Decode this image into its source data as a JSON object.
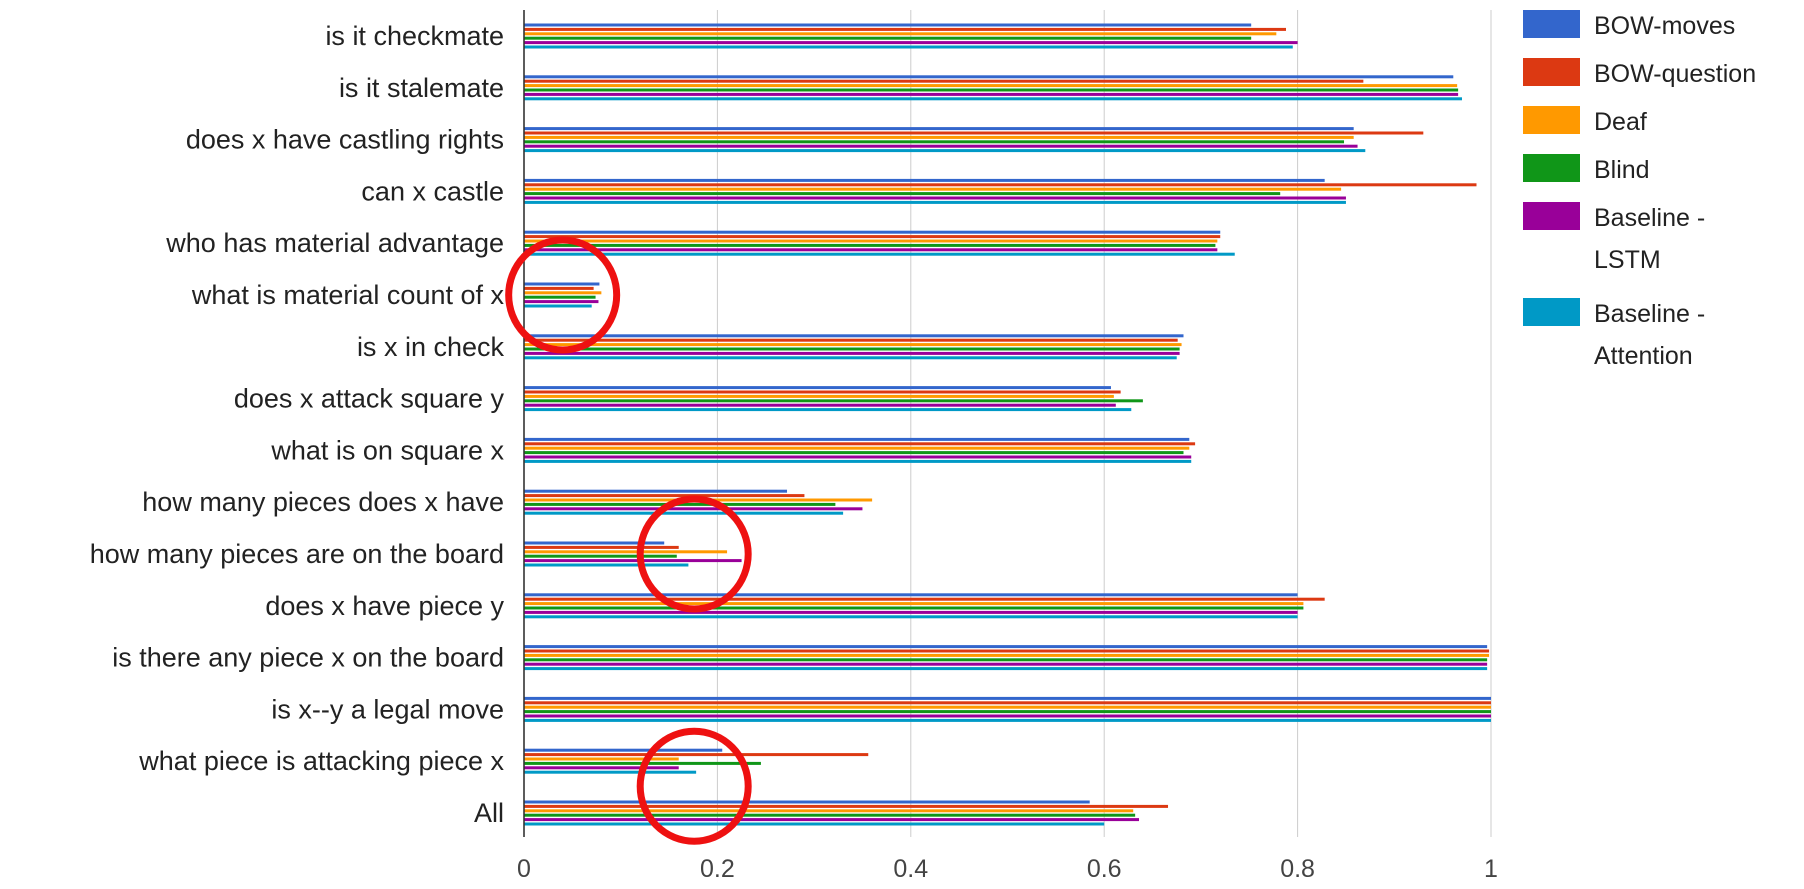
{
  "chart_data": {
    "type": "bar",
    "orientation": "horizontal",
    "title": "",
    "xlabel": "",
    "ylabel": "",
    "xlim": [
      0,
      1
    ],
    "x_ticks": [
      "0",
      "0.2",
      "0.4",
      "0.6",
      "0.8",
      "1"
    ],
    "grid": true,
    "legend_position": "right",
    "categories": [
      "is it checkmate",
      "is it stalemate",
      "does x have castling rights",
      "can x castle",
      "who has material advantage",
      "what is material count of x",
      "is x in check",
      "does x attack square y",
      "what is on square x",
      "how many pieces does x have",
      "how many pieces are on the board",
      "does x have piece y",
      "is there any piece x on the board",
      "is x--y a legal move",
      "what piece is attacking piece x",
      "All"
    ],
    "series": [
      {
        "name": "BOW-moves",
        "legend_lines": [
          "BOW-moves"
        ],
        "color": "#3366cc",
        "values": [
          0.752,
          0.961,
          0.858,
          0.828,
          0.72,
          0.078,
          0.682,
          0.607,
          0.688,
          0.272,
          0.145,
          0.8,
          0.996,
          1.0,
          0.205,
          0.585
        ]
      },
      {
        "name": "BOW-question",
        "legend_lines": [
          "BOW-question"
        ],
        "color": "#dc3912",
        "values": [
          0.788,
          0.868,
          0.93,
          0.985,
          0.72,
          0.072,
          0.676,
          0.617,
          0.694,
          0.29,
          0.16,
          0.828,
          0.998,
          1.0,
          0.356,
          0.666
        ]
      },
      {
        "name": "Deaf",
        "legend_lines": [
          "Deaf"
        ],
        "color": "#ff9900",
        "values": [
          0.778,
          0.965,
          0.858,
          0.845,
          0.717,
          0.08,
          0.68,
          0.61,
          0.688,
          0.36,
          0.21,
          0.806,
          0.998,
          1.0,
          0.16,
          0.63
        ]
      },
      {
        "name": "Blind",
        "legend_lines": [
          "Blind"
        ],
        "color": "#109618",
        "values": [
          0.752,
          0.966,
          0.848,
          0.782,
          0.715,
          0.074,
          0.678,
          0.64,
          0.682,
          0.322,
          0.158,
          0.806,
          0.996,
          1.0,
          0.245,
          0.632
        ]
      },
      {
        "name": "Baseline - LSTM",
        "legend_lines": [
          "Baseline -",
          "LSTM"
        ],
        "color": "#990099",
        "values": [
          0.8,
          0.966,
          0.862,
          0.85,
          0.717,
          0.077,
          0.678,
          0.612,
          0.69,
          0.35,
          0.225,
          0.8,
          0.996,
          1.0,
          0.16,
          0.636
        ]
      },
      {
        "name": "Baseline - Attention",
        "legend_lines": [
          "Baseline -",
          "Attention"
        ],
        "color": "#0099c6",
        "values": [
          0.795,
          0.97,
          0.87,
          0.85,
          0.735,
          0.07,
          0.675,
          0.628,
          0.69,
          0.33,
          0.17,
          0.8,
          0.996,
          1.0,
          0.178,
          0.6
        ]
      }
    ],
    "annotations": [
      {
        "shape": "circle",
        "color": "#ee1111",
        "category": "what is material count of x",
        "x": 0.04
      },
      {
        "shape": "circle",
        "color": "#ee1111",
        "category": "how many pieces are on the board",
        "x": 0.176
      },
      {
        "shape": "circle",
        "color": "#ee1111",
        "category": "what piece is attacking piece x",
        "x": 0.176
      }
    ]
  }
}
